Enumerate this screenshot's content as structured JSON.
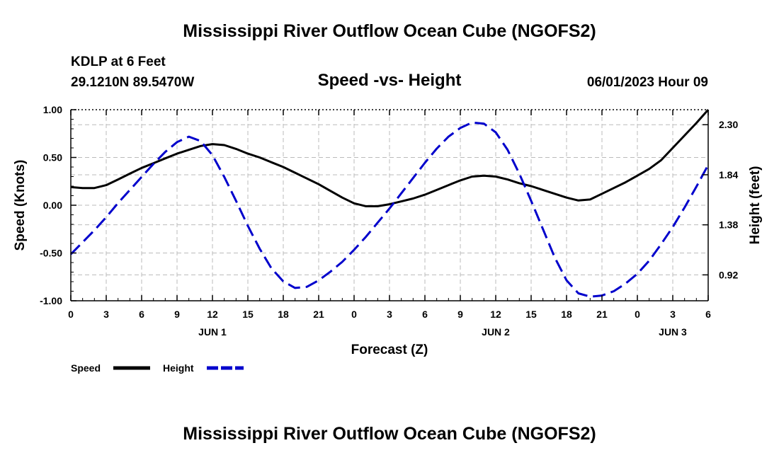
{
  "header": {
    "title_top": "Mississippi River Outflow Ocean Cube (NGOFS2)",
    "title_bottom": "Mississippi River Outflow Ocean Cube (NGOFS2)",
    "station": "KDLP at 6 Feet",
    "coords": "29.1210N  89.5470W",
    "datetime": "06/01/2023 Hour 09"
  },
  "chart_data": {
    "type": "line",
    "title": "Speed -vs- Height",
    "xlabel": "Forecast (Z)",
    "ylabel_left": "Speed (Knots)",
    "ylabel_right": "Height (feet)",
    "x_hours_range": [
      0,
      54
    ],
    "x_tick_hours": [
      0,
      3,
      6,
      9,
      12,
      15,
      18,
      21,
      24,
      27,
      30,
      33,
      36,
      39,
      42,
      45,
      48,
      51,
      54
    ],
    "x_tick_labels": [
      "0",
      "3",
      "6",
      "9",
      "12",
      "15",
      "18",
      "21",
      "0",
      "3",
      "6",
      "9",
      "12",
      "15",
      "18",
      "21",
      "0",
      "3",
      "6"
    ],
    "day_labels": [
      {
        "hour": 12,
        "label": "JUN 1"
      },
      {
        "hour": 36,
        "label": "JUN 2"
      },
      {
        "hour": 51,
        "label": "JUN 3"
      }
    ],
    "y_left": {
      "range": [
        -1.0,
        1.0
      ],
      "ticks": [
        -1.0,
        -0.5,
        0.0,
        0.5,
        1.0
      ],
      "tick_labels": [
        "-1.00",
        "-0.50",
        "0.00",
        "0.50",
        "1.00"
      ]
    },
    "y_right": {
      "range": [
        0.682,
        2.438
      ],
      "ticks": [
        0.92,
        1.38,
        1.84,
        2.3
      ],
      "tick_labels": [
        "0.92",
        "1.38",
        "1.84",
        "2.30"
      ]
    },
    "grid": true,
    "legend_position": "bottom-left",
    "series": [
      {
        "name": "Speed",
        "axis": "left",
        "color": "#000000",
        "style": "solid",
        "x": [
          0,
          1,
          2,
          3,
          4,
          5,
          6,
          7,
          8,
          9,
          10,
          11,
          12,
          13,
          14,
          15,
          16,
          17,
          18,
          19,
          20,
          21,
          22,
          23,
          24,
          25,
          26,
          27,
          28,
          29,
          30,
          31,
          32,
          33,
          34,
          35,
          36,
          37,
          38,
          39,
          40,
          41,
          42,
          43,
          44,
          45,
          46,
          47,
          48,
          49,
          50,
          51,
          52,
          53,
          54
        ],
        "values": [
          0.19,
          0.18,
          0.18,
          0.21,
          0.27,
          0.33,
          0.39,
          0.44,
          0.49,
          0.54,
          0.58,
          0.62,
          0.64,
          0.63,
          0.59,
          0.54,
          0.5,
          0.45,
          0.4,
          0.34,
          0.28,
          0.22,
          0.15,
          0.08,
          0.02,
          -0.01,
          -0.01,
          0.01,
          0.04,
          0.07,
          0.11,
          0.16,
          0.21,
          0.26,
          0.3,
          0.31,
          0.3,
          0.27,
          0.23,
          0.2,
          0.16,
          0.12,
          0.08,
          0.05,
          0.06,
          0.12,
          0.18,
          0.24,
          0.31,
          0.38,
          0.47,
          0.6,
          0.73,
          0.86,
          1.0
        ]
      },
      {
        "name": "Height",
        "axis": "right",
        "color": "#0000cc",
        "style": "dashed",
        "x": [
          0,
          1,
          2,
          3,
          4,
          5,
          6,
          7,
          8,
          9,
          10,
          11,
          12,
          13,
          14,
          15,
          16,
          17,
          18,
          19,
          20,
          21,
          22,
          23,
          24,
          25,
          26,
          27,
          28,
          29,
          30,
          31,
          32,
          33,
          34,
          35,
          36,
          37,
          38,
          39,
          40,
          41,
          42,
          43,
          44,
          45,
          46,
          47,
          48,
          49,
          50,
          51,
          52,
          53,
          54
        ],
        "values": [
          1.11,
          1.22,
          1.33,
          1.45,
          1.58,
          1.7,
          1.82,
          1.94,
          2.05,
          2.14,
          2.19,
          2.15,
          2.02,
          1.82,
          1.6,
          1.37,
          1.16,
          0.98,
          0.86,
          0.8,
          0.81,
          0.87,
          0.95,
          1.04,
          1.15,
          1.27,
          1.4,
          1.53,
          1.67,
          1.81,
          1.95,
          2.08,
          2.19,
          2.27,
          2.32,
          2.31,
          2.23,
          2.07,
          1.85,
          1.6,
          1.34,
          1.08,
          0.87,
          0.75,
          0.72,
          0.73,
          0.77,
          0.84,
          0.93,
          1.05,
          1.2,
          1.36,
          1.54,
          1.73,
          1.93
        ]
      }
    ]
  }
}
